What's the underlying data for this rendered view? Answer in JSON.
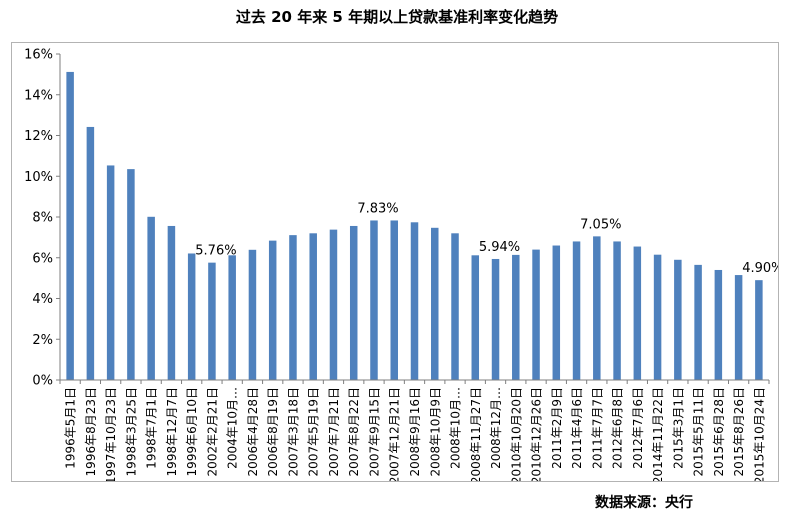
{
  "title": "过去 20 年来 5 年期以上贷款基准利率变化趋势",
  "source": "数据来源：央行",
  "colors": {
    "bar": "#4f81bd",
    "axis": "#7f7f7f",
    "text": "#000000"
  },
  "chart_data": {
    "type": "bar",
    "title": "过去 20 年来 5 年期以上贷款基准利率变化趋势",
    "xlabel": "",
    "ylabel": "",
    "ylim": [
      0,
      16
    ],
    "yticks": [
      "0%",
      "2%",
      "4%",
      "6%",
      "8%",
      "10%",
      "12%",
      "14%",
      "16%"
    ],
    "grid": false,
    "legend": "none",
    "categories": [
      "1996年5月1日",
      "1996年8月23日",
      "1997年10月23日",
      "1998年3月25日",
      "1998年7月1日",
      "1998年12月7日",
      "1999年6月10日",
      "2002年2月21日",
      "2004年10月…",
      "2006年4月28日",
      "2006年8月19日",
      "2007年3月18日",
      "2007年5月19日",
      "2007年7月21日",
      "2007年8月22日",
      "2007年9月15日",
      "2007年12月21日",
      "2008年9月16日",
      "2008年10月9日",
      "2008年10月…",
      "2008年11月27日",
      "2008年12月…",
      "2010年10月20日",
      "2010年12月26日",
      "2011年2月9日",
      "2011年4月6日",
      "2011年7月7日",
      "2012年6月8日",
      "2012年7月6日",
      "2014年11月22日",
      "2015年3月1日",
      "2015年5月11日",
      "2015年6月28日",
      "2015年8月26日",
      "2015年10月24日"
    ],
    "values": [
      15.12,
      12.42,
      10.53,
      10.35,
      8.01,
      7.56,
      6.21,
      5.76,
      6.12,
      6.39,
      6.84,
      7.11,
      7.2,
      7.38,
      7.56,
      7.83,
      7.83,
      7.74,
      7.47,
      7.2,
      6.12,
      5.94,
      6.14,
      6.4,
      6.6,
      6.8,
      7.05,
      6.8,
      6.55,
      6.15,
      5.9,
      5.65,
      5.4,
      5.15,
      4.9
    ],
    "data_labels": [
      {
        "index": 7,
        "text": "5.76%"
      },
      {
        "index": 15,
        "text": "7.83%"
      },
      {
        "index": 21,
        "text": "5.94%"
      },
      {
        "index": 26,
        "text": "7.05%"
      },
      {
        "index": 34,
        "text": "4.90%"
      }
    ]
  }
}
